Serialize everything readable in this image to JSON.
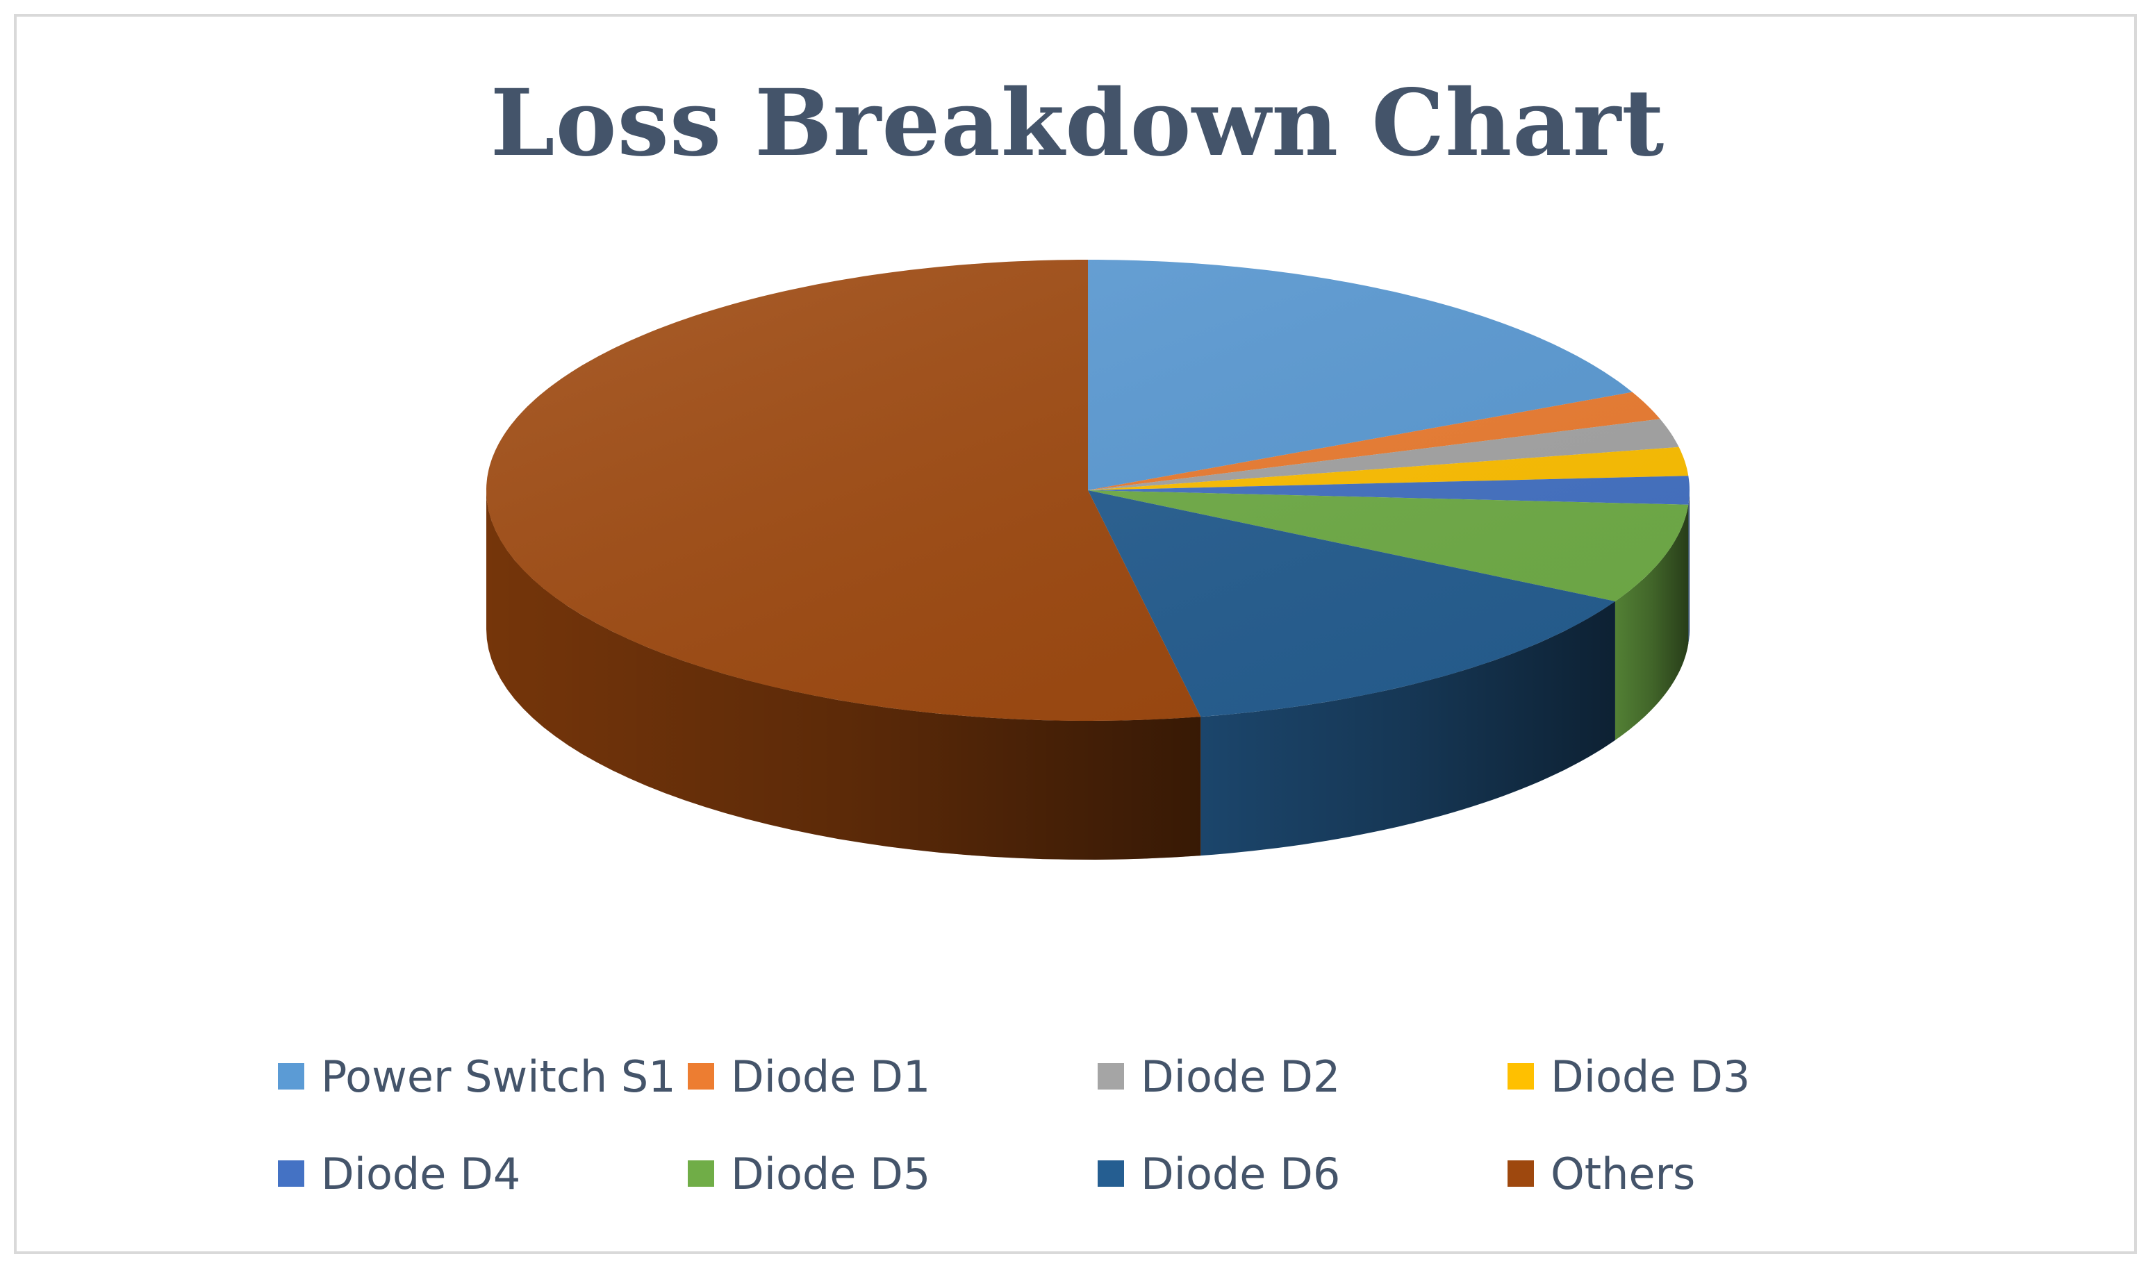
{
  "chart_data": {
    "type": "pie",
    "title": "Loss Breakdown Chart",
    "categories": [
      "Power Switch S1",
      "Diode D1",
      "Diode D2",
      "Diode D3",
      "Diode D4",
      "Diode D5",
      "Diode D6",
      "Others"
    ],
    "values": [
      18,
      2,
      2,
      2,
      2,
      7,
      14,
      53
    ],
    "colors": [
      "#5b9bd5",
      "#ed7d31",
      "#a5a5a5",
      "#ffc000",
      "#4472c4",
      "#70ad47",
      "#255e91",
      "#9e480e"
    ],
    "three_d": true,
    "legend_position": "bottom"
  }
}
